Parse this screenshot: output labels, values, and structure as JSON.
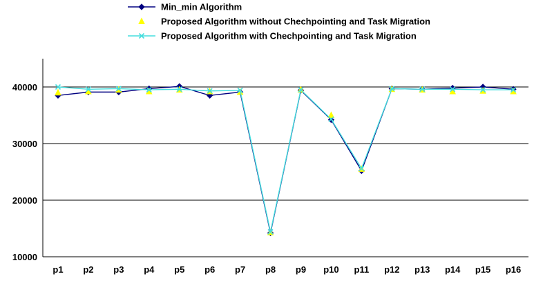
{
  "chart_data": {
    "type": "line",
    "title": "",
    "xlabel": "",
    "ylabel": "",
    "categories": [
      "p1",
      "p2",
      "p3",
      "p4",
      "p5",
      "p6",
      "p7",
      "p8",
      "p9",
      "p10",
      "p11",
      "p12",
      "p13",
      "p14",
      "p15",
      "p16"
    ],
    "ylim": [
      10000,
      45000
    ],
    "yticks": [
      10000,
      20000,
      30000,
      40000
    ],
    "ytick_labels": [
      "10000",
      "20000",
      "30000",
      "40000"
    ],
    "grid": "horizontal",
    "legend_position": "top",
    "series": [
      {
        "name": "Min_min Algorithm",
        "color": "#000080",
        "marker": "diamond",
        "values": [
          38500,
          39100,
          39100,
          39700,
          40100,
          38500,
          39100,
          14200,
          39400,
          34200,
          25200,
          39700,
          39600,
          39800,
          40000,
          39600
        ]
      },
      {
        "name": "Proposed Algorithm without Chechpointing and Task Migration",
        "color": "#FFFF00",
        "marker": "triangle",
        "values": [
          39000,
          39200,
          39500,
          39200,
          39500,
          39200,
          39100,
          14300,
          39500,
          35000,
          25500,
          39600,
          39500,
          39200,
          39300,
          39200
        ]
      },
      {
        "name": "Proposed Algorithm with Chechpointing and Task Migration",
        "color": "#44DDDD",
        "marker": "x",
        "values": [
          40000,
          39600,
          39700,
          39500,
          39600,
          39300,
          39400,
          14400,
          39500,
          34300,
          25600,
          39700,
          39600,
          39600,
          39500,
          39500
        ]
      }
    ]
  }
}
